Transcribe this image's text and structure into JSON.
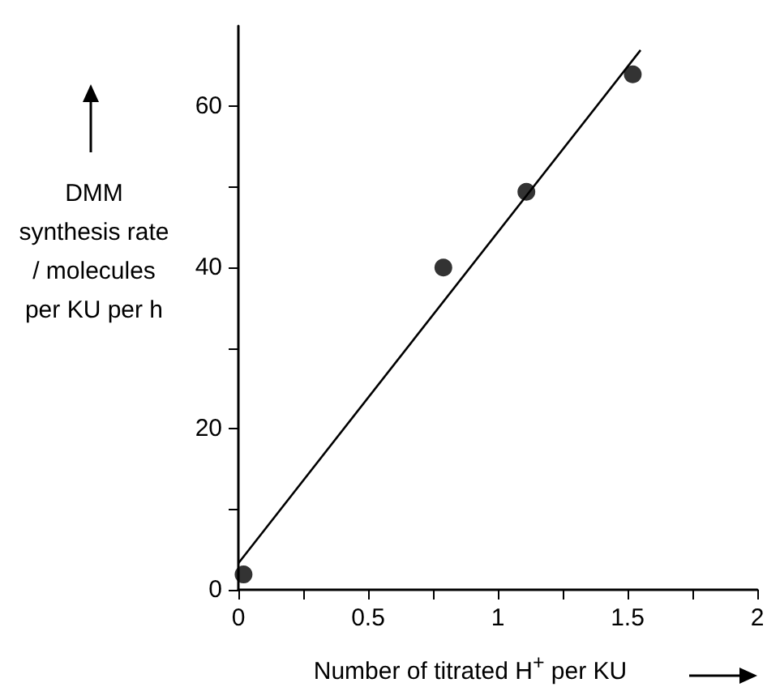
{
  "chart_data": {
    "type": "scatter",
    "xlabel": "Number of titrated H$^{+}$ per KU",
    "ylabel": "DMM synthesis rate / molecules per KU per h",
    "xlim": [
      0,
      2
    ],
    "ylim": [
      0,
      70
    ],
    "xticks": [
      0,
      {
        "value": 0.25,
        "label": null
      },
      0.5,
      {
        "value": 0.75,
        "label": null
      },
      1,
      {
        "value": 1.25,
        "label": null
      },
      1.5,
      {
        "value": 1.75,
        "label": null
      },
      2
    ],
    "yticks": [
      0,
      {
        "value": 10,
        "label": null
      },
      20,
      {
        "value": 30,
        "label": null
      },
      40,
      {
        "value": 50,
        "label": null
      },
      60
    ],
    "grid": false,
    "marker": "circle",
    "series": [
      {
        "color": "#000000",
        "x": [
          0.02,
          0.79,
          1.11,
          1.52
        ],
        "values": [
          1.9,
          40,
          49.4,
          64
        ]
      },
      {
        "type": "line",
        "color": "#000000",
        "x": [
          0,
          1.55
        ],
        "values": [
          3.3,
          67
        ],
        "marker": "none",
        "line_style": "solid"
      }
    ]
  }
}
